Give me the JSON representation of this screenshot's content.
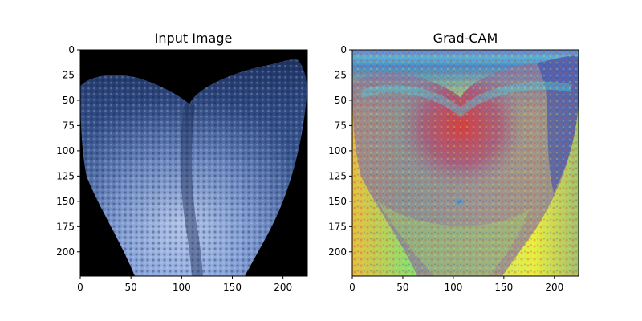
{
  "chart_data": [
    {
      "type": "heatmap",
      "title": "Input Image",
      "xlabel": "",
      "ylabel": "",
      "xlim": [
        0,
        224
      ],
      "ylim": [
        224,
        0
      ],
      "xticks": [
        "0",
        "50",
        "100",
        "150",
        "200"
      ],
      "yticks": [
        "0",
        "25",
        "50",
        "75",
        "100",
        "125",
        "150",
        "175",
        "200"
      ],
      "colors": {
        "background": "#000000",
        "tissue_dark": "#1a2f5c",
        "tissue_light": "#9fb8e8"
      }
    },
    {
      "type": "heatmap",
      "title": "Grad-CAM",
      "xlabel": "",
      "ylabel": "",
      "xlim": [
        0,
        224
      ],
      "ylim": [
        224,
        0
      ],
      "xticks": [
        "0",
        "50",
        "100",
        "150",
        "200"
      ],
      "yticks": [
        "0",
        "25",
        "50",
        "75",
        "100",
        "125",
        "150",
        "175",
        "200"
      ],
      "colors": {
        "hot": "#e03030",
        "warm": "#e8e040",
        "mid": "#88e070",
        "cool": "#3a7ad8",
        "cold": "#1a2f9c"
      }
    }
  ]
}
